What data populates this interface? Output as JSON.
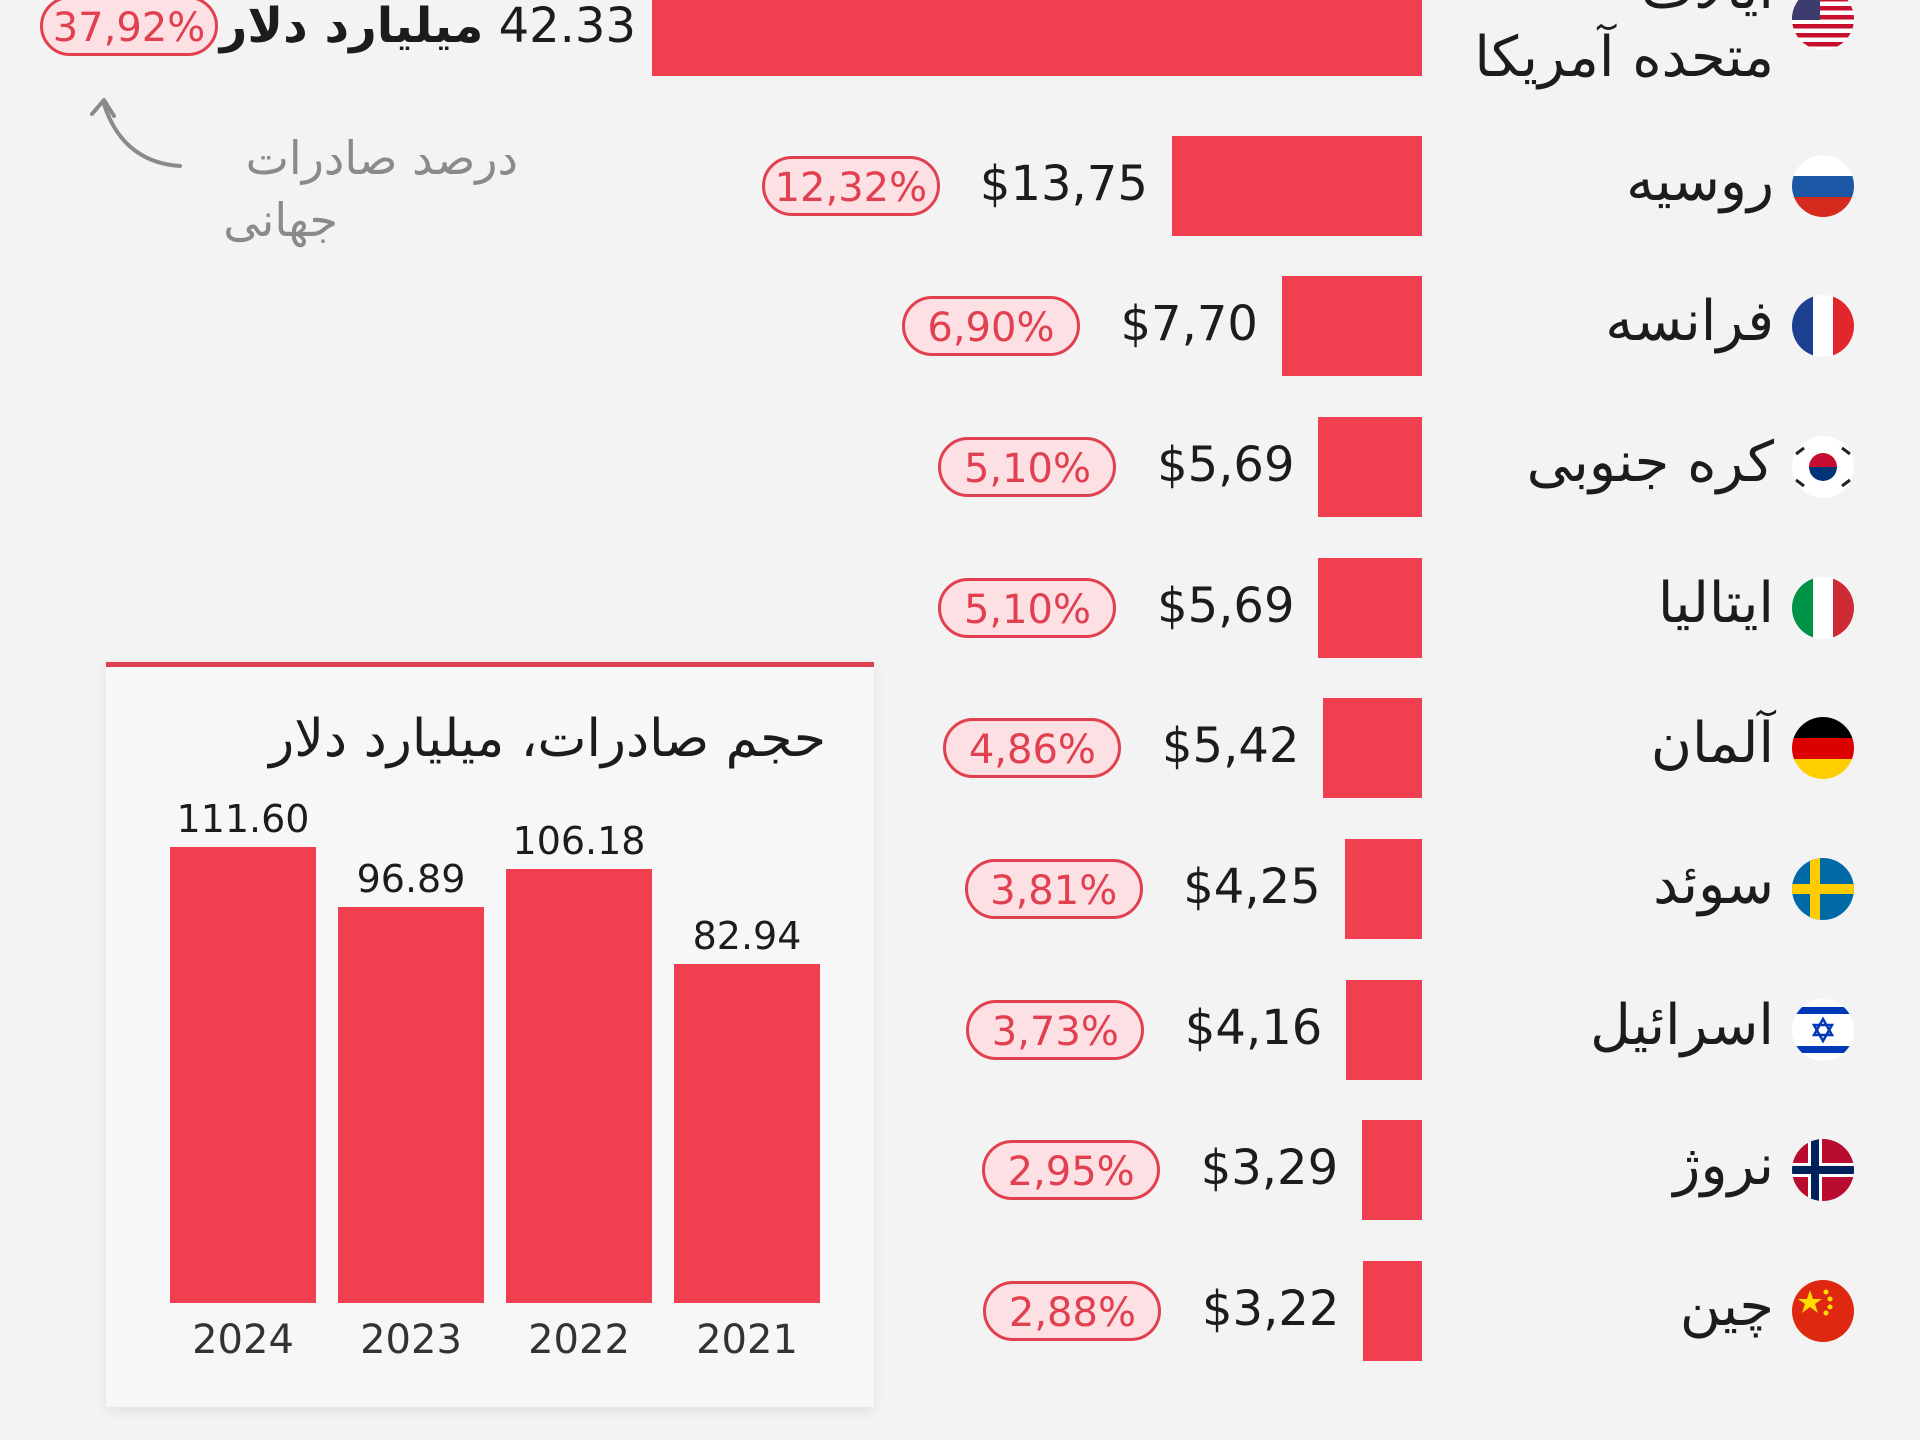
{
  "colors": {
    "bar": "#f0404f",
    "pill_border": "#e0404f",
    "pill_fill": "#fde0e3",
    "background": "#f3f3f3",
    "annotation": "#8a8a8a"
  },
  "annotation": {
    "line1": "درصد صادرات",
    "line2": "جهانی"
  },
  "top_value_suffix": "میلیارد دلار",
  "countries": [
    {
      "name_line1": "ایالات",
      "name_line2": "متحده آمریکا",
      "flag": "usa-flag-icon",
      "value_label": "42.33",
      "share_label": "37,92%",
      "value": 42.33
    },
    {
      "name": "روسیه",
      "flag": "russia-flag-icon",
      "value_label": "$13,75",
      "share_label": "12,32%",
      "value": 13.75
    },
    {
      "name": "فرانسه",
      "flag": "france-flag-icon",
      "value_label": "$7,70",
      "share_label": "6,90%",
      "value": 7.7
    },
    {
      "name": "کره جنوبی",
      "flag": "south-korea-flag-icon",
      "value_label": "$5,69",
      "share_label": "5,10%",
      "value": 5.69
    },
    {
      "name": "ایتالیا",
      "flag": "italy-flag-icon",
      "value_label": "$5,69",
      "share_label": "5,10%",
      "value": 5.69
    },
    {
      "name": "آلمان",
      "flag": "germany-flag-icon",
      "value_label": "$5,42",
      "share_label": "4,86%",
      "value": 5.42
    },
    {
      "name": "سوئد",
      "flag": "sweden-flag-icon",
      "value_label": "$4,25",
      "share_label": "3,81%",
      "value": 4.25
    },
    {
      "name": "اسرائیل",
      "flag": "israel-flag-icon",
      "value_label": "$4,16",
      "share_label": "3,73%",
      "value": 4.16
    },
    {
      "name": "نروژ",
      "flag": "norway-flag-icon",
      "value_label": "$3,29",
      "share_label": "2,95%",
      "value": 3.29
    },
    {
      "name": "چین",
      "flag": "china-flag-icon",
      "value_label": "$3,22",
      "share_label": "2,88%",
      "value": 3.22
    }
  ],
  "inset": {
    "title": "حجم صادرات، میلیارد دلار"
  },
  "chart_data": [
    {
      "type": "bar",
      "orientation": "horizontal",
      "categories": [
        "ایالات متحده آمریکا",
        "روسیه",
        "فرانسه",
        "کره جنوبی",
        "ایتالیا",
        "آلمان",
        "سوئد",
        "اسرائیل",
        "نروژ",
        "چین"
      ],
      "values": [
        42.33,
        13.75,
        7.7,
        5.69,
        5.69,
        5.42,
        4.25,
        4.16,
        3.29,
        3.22
      ],
      "value_labels": [
        "42.33",
        "$13,75",
        "$7,70",
        "$5,69",
        "$5,69",
        "$5,42",
        "$4,25",
        "$4,16",
        "$3,29",
        "$3,22"
      ],
      "share_labels": [
        "37,92%",
        "12,32%",
        "6,90%",
        "5,10%",
        "5,10%",
        "4,86%",
        "3,81%",
        "3,73%",
        "2,95%",
        "2,88%"
      ],
      "shares": [
        37.92,
        12.32,
        6.9,
        5.1,
        5.1,
        4.86,
        3.81,
        3.73,
        2.95,
        2.88
      ],
      "annotations": [
        "درصد صادرات جهانی",
        "میلیارد دلار"
      ]
    },
    {
      "type": "bar",
      "title": "حجم صادرات، میلیارد دلار",
      "categories": [
        "2024",
        "2023",
        "2022",
        "2021"
      ],
      "values": [
        111.6,
        96.89,
        106.18,
        82.94
      ],
      "value_labels": [
        "111.60",
        "96.89",
        "106.18",
        "82.94"
      ],
      "ylim": [
        0,
        111.6
      ]
    }
  ]
}
